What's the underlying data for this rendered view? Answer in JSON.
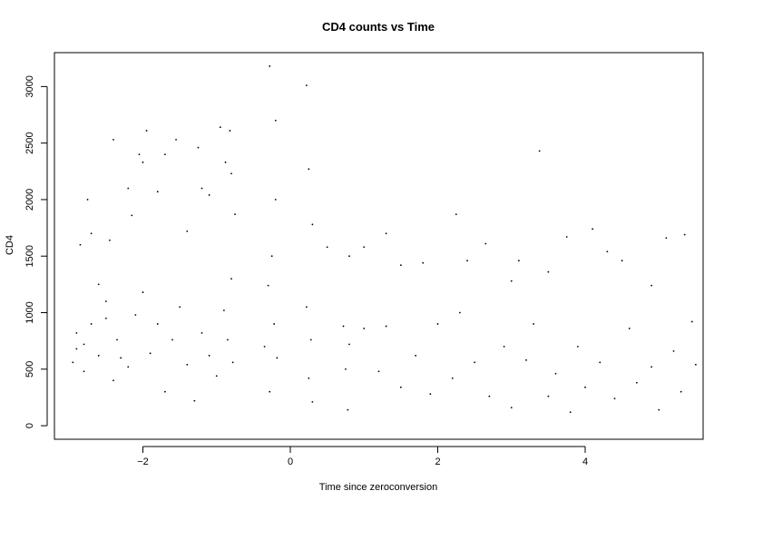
{
  "chart_data": {
    "type": "scatter",
    "title": "CD4 counts vs Time",
    "xlabel": "Time since zeroconversion",
    "ylabel": "CD4",
    "xlim": [
      -3.2,
      5.6
    ],
    "ylim": [
      -120,
      3300
    ],
    "x_ticks": [
      -2,
      0,
      2,
      4
    ],
    "x_tick_labels": [
      "−2",
      "0",
      "2",
      "4"
    ],
    "y_ticks": [
      0,
      500,
      1000,
      1500,
      2000,
      2500,
      3000
    ],
    "y_tick_labels": [
      "0",
      "500",
      "1000",
      "1500",
      "2000",
      "2500",
      "3000"
    ],
    "grid": false,
    "marker": "dot",
    "point_color": "#000000",
    "points": [
      [
        -2.9,
        820
      ],
      [
        -2.85,
        1600
      ],
      [
        -2.8,
        720
      ],
      [
        -2.75,
        2000
      ],
      [
        -2.7,
        1700
      ],
      [
        -2.6,
        1250
      ],
      [
        -2.5,
        950
      ],
      [
        -2.45,
        1640
      ],
      [
        -2.4,
        2530
      ],
      [
        -2.3,
        600
      ],
      [
        -2.2,
        2100
      ],
      [
        -2.15,
        1860
      ],
      [
        -2.05,
        2400
      ],
      [
        -2.0,
        2330
      ],
      [
        -1.95,
        2610
      ],
      [
        -1.8,
        2070
      ],
      [
        -1.7,
        2400
      ],
      [
        -1.55,
        2530
      ],
      [
        -1.4,
        1720
      ],
      [
        -1.25,
        2460
      ],
      [
        -1.2,
        2100
      ],
      [
        -1.1,
        2040
      ],
      [
        -0.95,
        2640
      ],
      [
        -0.88,
        2330
      ],
      [
        -0.82,
        2610
      ],
      [
        -0.8,
        2230
      ],
      [
        -0.28,
        3180
      ],
      [
        -0.2,
        2700
      ],
      [
        0.22,
        3010
      ],
      [
        0.25,
        2270
      ],
      [
        0.3,
        1780
      ],
      [
        0.5,
        1580
      ],
      [
        0.8,
        1500
      ],
      [
        1.0,
        1580
      ],
      [
        1.3,
        1700
      ],
      [
        1.5,
        1420
      ],
      [
        1.8,
        1440
      ],
      [
        2.25,
        1870
      ],
      [
        2.4,
        1460
      ],
      [
        2.65,
        1610
      ],
      [
        3.0,
        1280
      ],
      [
        3.1,
        1460
      ],
      [
        3.38,
        2430
      ],
      [
        3.5,
        1360
      ],
      [
        3.75,
        1670
      ],
      [
        4.1,
        1740
      ],
      [
        4.3,
        1540
      ],
      [
        4.5,
        1460
      ],
      [
        4.9,
        1240
      ],
      [
        5.1,
        1660
      ],
      [
        5.35,
        1690
      ],
      [
        5.45,
        920
      ],
      [
        -2.95,
        560
      ],
      [
        -2.9,
        680
      ],
      [
        -2.8,
        480
      ],
      [
        -2.7,
        900
      ],
      [
        -2.6,
        620
      ],
      [
        -2.5,
        1100
      ],
      [
        -2.4,
        400
      ],
      [
        -2.35,
        760
      ],
      [
        -2.2,
        520
      ],
      [
        -2.1,
        980
      ],
      [
        -2.0,
        1180
      ],
      [
        -1.9,
        640
      ],
      [
        -1.8,
        900
      ],
      [
        -1.7,
        300
      ],
      [
        -1.6,
        760
      ],
      [
        -1.5,
        1050
      ],
      [
        -1.4,
        540
      ],
      [
        -1.3,
        220
      ],
      [
        -1.2,
        820
      ],
      [
        -1.1,
        620
      ],
      [
        -1.0,
        440
      ],
      [
        -0.9,
        1020
      ],
      [
        -0.85,
        760
      ],
      [
        -0.8,
        1300
      ],
      [
        -0.78,
        560
      ],
      [
        -0.75,
        1870
      ],
      [
        -0.35,
        700
      ],
      [
        -0.3,
        1240
      ],
      [
        -0.28,
        300
      ],
      [
        -0.25,
        1500
      ],
      [
        -0.22,
        900
      ],
      [
        -0.2,
        2000
      ],
      [
        -0.18,
        600
      ],
      [
        0.22,
        1050
      ],
      [
        0.25,
        420
      ],
      [
        0.28,
        760
      ],
      [
        0.3,
        210
      ],
      [
        0.72,
        880
      ],
      [
        0.75,
        500
      ],
      [
        0.78,
        140
      ],
      [
        0.8,
        720
      ],
      [
        1.0,
        860
      ],
      [
        1.2,
        480
      ],
      [
        1.3,
        880
      ],
      [
        1.5,
        340
      ],
      [
        1.7,
        620
      ],
      [
        1.9,
        280
      ],
      [
        2.0,
        900
      ],
      [
        2.2,
        420
      ],
      [
        2.3,
        1000
      ],
      [
        2.5,
        560
      ],
      [
        2.7,
        260
      ],
      [
        2.9,
        700
      ],
      [
        3.0,
        160
      ],
      [
        3.2,
        580
      ],
      [
        3.3,
        900
      ],
      [
        3.5,
        260
      ],
      [
        3.6,
        460
      ],
      [
        3.8,
        120
      ],
      [
        3.9,
        700
      ],
      [
        4.0,
        340
      ],
      [
        4.2,
        560
      ],
      [
        4.4,
        240
      ],
      [
        4.6,
        860
      ],
      [
        4.7,
        380
      ],
      [
        4.9,
        520
      ],
      [
        5.0,
        140
      ],
      [
        5.2,
        660
      ],
      [
        5.3,
        300
      ],
      [
        5.5,
        540
      ]
    ]
  }
}
